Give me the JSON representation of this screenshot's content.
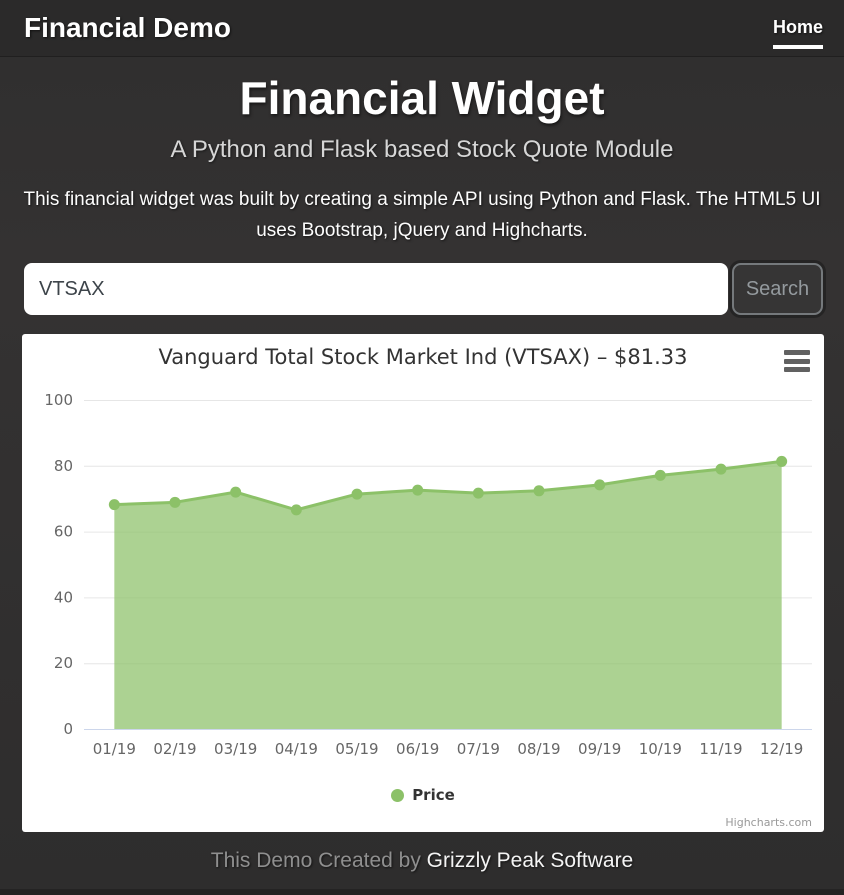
{
  "header": {
    "brand": "Financial Demo",
    "nav": [
      {
        "label": "Home",
        "active": true
      }
    ]
  },
  "hero": {
    "title": "Financial Widget",
    "subtitle": "A Python and Flask based Stock Quote Module",
    "description": "This financial widget was built by creating a simple API using Python and Flask. The HTML5 UI uses Bootstrap, jQuery and Highcharts."
  },
  "search": {
    "value": "VTSAX",
    "button_label": "Search"
  },
  "chart": {
    "title": "Vanguard Total Stock Market Ind (VTSAX) – $81.33",
    "menu_icon": "hamburger-icon",
    "credits": "Highcharts.com"
  },
  "chart_data": {
    "type": "area",
    "title": "Vanguard Total Stock Market Ind (VTSAX) – $81.33",
    "categories": [
      "01/19",
      "02/19",
      "03/19",
      "04/19",
      "05/19",
      "06/19",
      "07/19",
      "08/19",
      "09/19",
      "10/19",
      "11/19",
      "12/19"
    ],
    "series": [
      {
        "name": "Price",
        "values": [
          68.2,
          68.9,
          72.0,
          66.6,
          71.4,
          72.6,
          71.7,
          72.4,
          74.2,
          77.1,
          79.0,
          81.33
        ]
      }
    ],
    "xlabel": "",
    "ylabel": "",
    "ylim": [
      0,
      100
    ],
    "ytick_step": 20,
    "grid": true,
    "legend_position": "bottom",
    "colors": {
      "line": "#8cc168",
      "fill": "rgba(140,193,104,0.72)",
      "grid": "#e6e6e6",
      "axis_line": "#ccd6eb",
      "label": "#666666",
      "title": "#333333"
    }
  },
  "footer": {
    "prefix": "This Demo Created by ",
    "link": "Grizzly Peak Software"
  }
}
